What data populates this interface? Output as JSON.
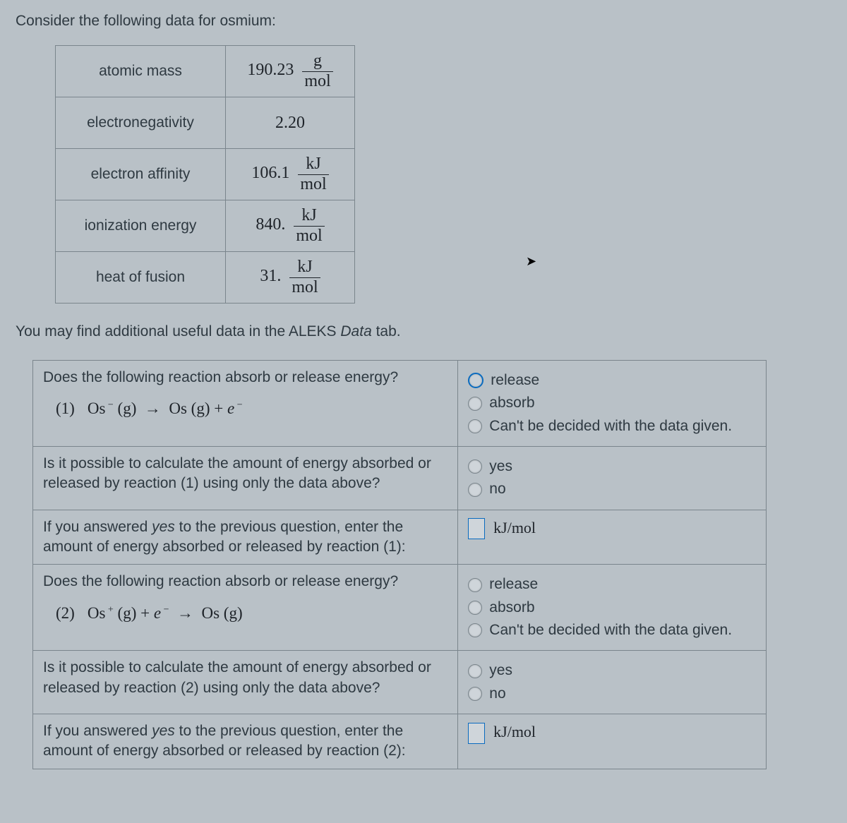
{
  "intro": "Consider the following data for osmium:",
  "table": {
    "rows": [
      {
        "label": "atomic mass",
        "value": "190.23",
        "unit_top": "g",
        "unit_bot": "mol"
      },
      {
        "label": "electronegativity",
        "value": "2.20",
        "unit_top": null,
        "unit_bot": null
      },
      {
        "label": "electron affinity",
        "value": "106.1",
        "unit_top": "kJ",
        "unit_bot": "mol"
      },
      {
        "label": "ionization energy",
        "value": "840.",
        "unit_top": "kJ",
        "unit_bot": "mol"
      },
      {
        "label": "heat of fusion",
        "value": "31.",
        "unit_top": "kJ",
        "unit_bot": "mol"
      }
    ]
  },
  "note_pre": "You may find additional useful data in the ALEKS ",
  "note_ital": "Data",
  "note_post": " tab.",
  "q": {
    "r1": {
      "prompt": "Does the following reaction absorb or release energy?",
      "eq_num": "(1)",
      "eq_html": "Os<span class='sup'>&nbsp;&minus;</span> (g)&nbsp; &rarr; &nbsp;Os (g) + <span style='font-style:italic'>e</span><span class='sup'>&nbsp;&minus;</span>",
      "opts": [
        "release",
        "absorb",
        "Can't be decided with the data given."
      ],
      "selected_idx": 0,
      "hot": true
    },
    "r2": {
      "prompt": "Is it possible to calculate the amount of energy absorbed or released by reaction (1) using only the data above?",
      "opts": [
        "yes",
        "no"
      ]
    },
    "r3": {
      "prompt_pre": "If you answered ",
      "prompt_ital": "yes",
      "prompt_post": " to the previous question, enter the amount of energy absorbed or released by reaction (1):",
      "unit": "kJ/mol"
    },
    "r4": {
      "prompt": "Does the following reaction absorb or release energy?",
      "eq_num": "(2)",
      "eq_html": "Os<span class='sup'>&nbsp;+</span> (g) + <span style='font-style:italic'>e</span><span class='sup'>&nbsp;&minus;</span>&nbsp; &rarr; &nbsp;Os (g)",
      "opts": [
        "release",
        "absorb",
        "Can't be decided with the data given."
      ]
    },
    "r5": {
      "prompt": "Is it possible to calculate the amount of energy absorbed or released by reaction (2) using only the data above?",
      "opts": [
        "yes",
        "no"
      ]
    },
    "r6": {
      "prompt_pre": "If you answered ",
      "prompt_ital": "yes",
      "prompt_post": " to the previous question, enter the amount of energy absorbed or released by reaction (2):",
      "unit": "kJ/mol"
    }
  },
  "colors": {
    "bg": "#b9c1c7",
    "border": "#7a858c",
    "text": "#303a42",
    "accent": "#0a6bbf"
  }
}
